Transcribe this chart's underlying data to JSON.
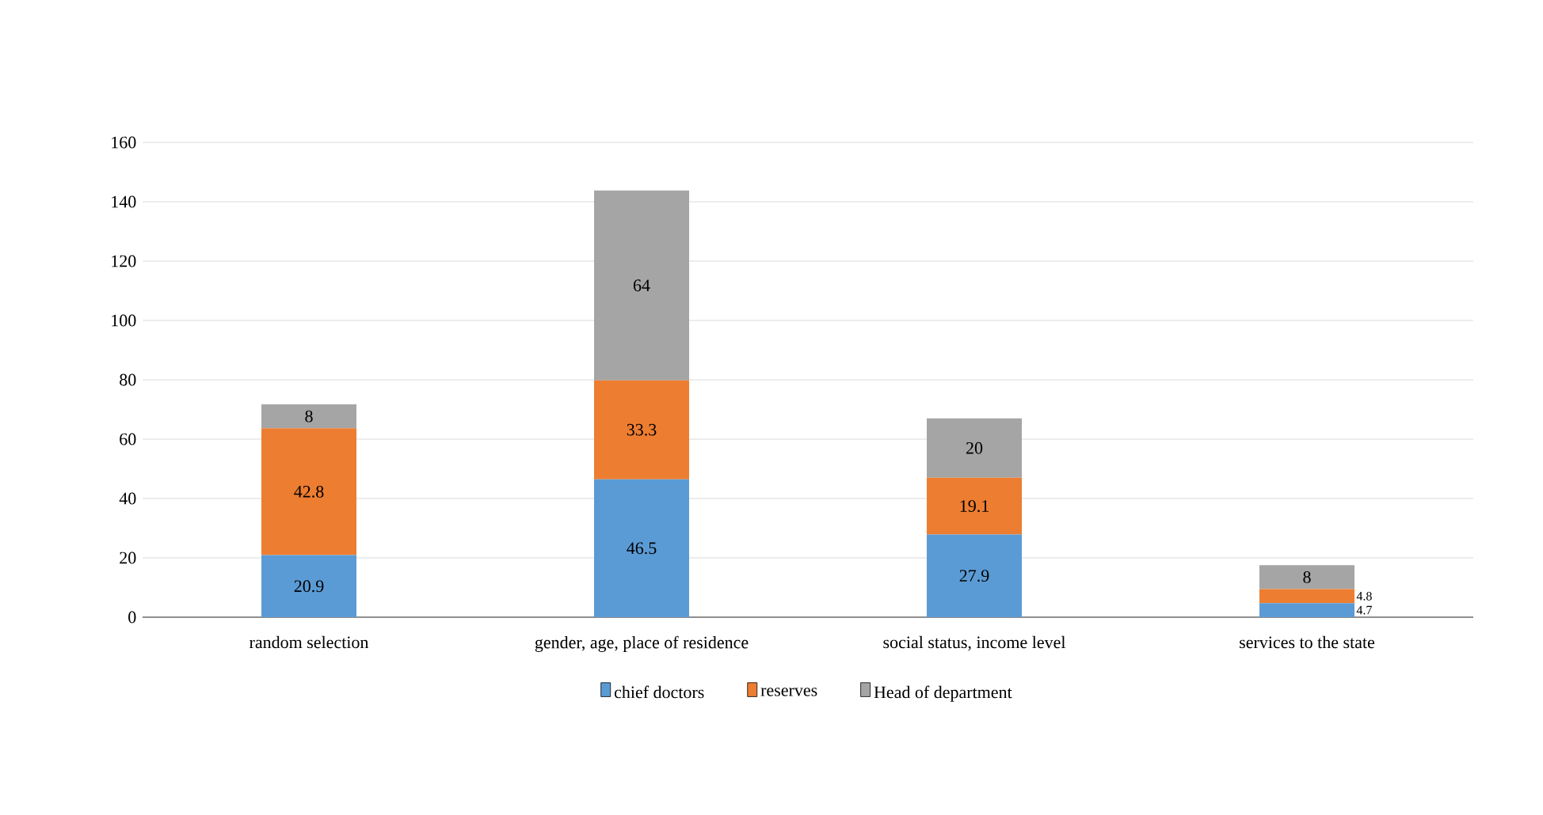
{
  "chart_data": {
    "type": "bar",
    "stacked": true,
    "categories": [
      "random selection",
      "gender, age, place of residence",
      "social status, income level",
      "services to the state"
    ],
    "series": [
      {
        "name": "chief doctors",
        "color": "#5b9bd5",
        "values": [
          20.9,
          46.5,
          27.9,
          4.7
        ]
      },
      {
        "name": "reserves",
        "color": "#ed7d31",
        "values": [
          42.8,
          33.3,
          19.1,
          4.8
        ]
      },
      {
        "name": "Head of department",
        "color": "#a5a5a5",
        "values": [
          8,
          64,
          20,
          8
        ]
      }
    ],
    "ylim": [
      0,
      160
    ],
    "yticks": [
      0,
      20,
      40,
      60,
      80,
      100,
      120,
      140,
      160
    ],
    "grid": "y",
    "legend": "bottom",
    "data_labels": true
  }
}
